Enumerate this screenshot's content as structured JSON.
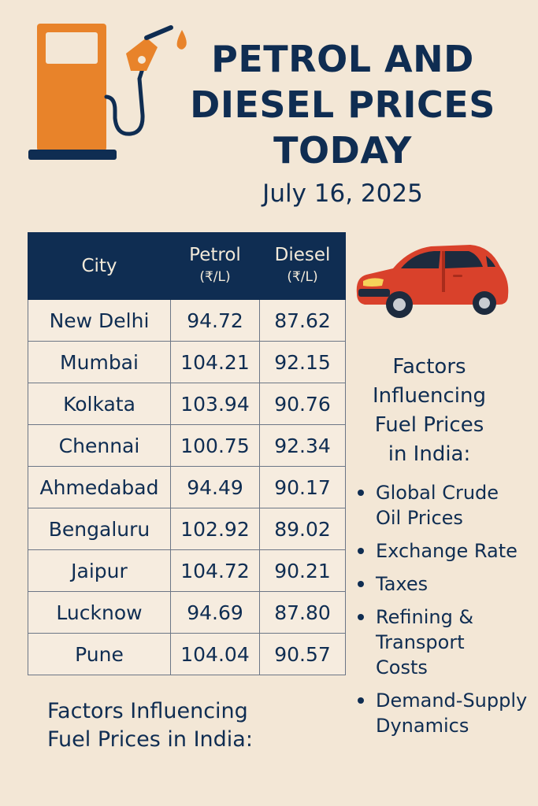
{
  "title": {
    "line1": "PETROL AND",
    "line2": "DIESEL PRICES",
    "line3": "TODAY"
  },
  "date": "July 16, 2025",
  "table": {
    "headers": {
      "city": "City",
      "petrol": "Petrol",
      "petrol_unit": "(₹/L)",
      "diesel": "Diesel",
      "diesel_unit": "(₹/L)"
    },
    "rows": [
      {
        "city": "New Delhi",
        "petrol": "94.72",
        "diesel": "87.62"
      },
      {
        "city": "Mumbai",
        "petrol": "104.21",
        "diesel": "92.15"
      },
      {
        "city": "Kolkata",
        "petrol": "103.94",
        "diesel": "90.76"
      },
      {
        "city": "Chennai",
        "petrol": "100.75",
        "diesel": "92.34"
      },
      {
        "city": "Ahmedabad",
        "petrol": "94.49",
        "diesel": "90.17"
      },
      {
        "city": "Bengaluru",
        "petrol": "102.92",
        "diesel": "89.02"
      },
      {
        "city": "Jaipur",
        "petrol": "104.72",
        "diesel": "90.21"
      },
      {
        "city": "Lucknow",
        "petrol": "94.69",
        "diesel": "87.80"
      },
      {
        "city": "Pune",
        "petrol": "104.04",
        "diesel": "90.57"
      }
    ]
  },
  "factors": {
    "heading_lines": [
      "Factors",
      "Influencing",
      "Fuel Prices",
      "in India:"
    ],
    "items": [
      [
        "Global Crude",
        "Oil Prices"
      ],
      [
        "Exchange Rate"
      ],
      [
        "Taxes"
      ],
      [
        "Refining &",
        "Transport",
        "Costs"
      ],
      [
        "Demand-Supply",
        "Dynamics"
      ]
    ]
  },
  "bottom_heading": {
    "line1": "Factors Influencing",
    "line2": "Fuel Prices in India:"
  },
  "icons": {
    "pump": "fuel-pump-icon",
    "car": "car-icon"
  },
  "colors": {
    "navy": "#0f2d52",
    "orange": "#e8832a",
    "red": "#d9412b",
    "background": "#f3e7d6"
  }
}
